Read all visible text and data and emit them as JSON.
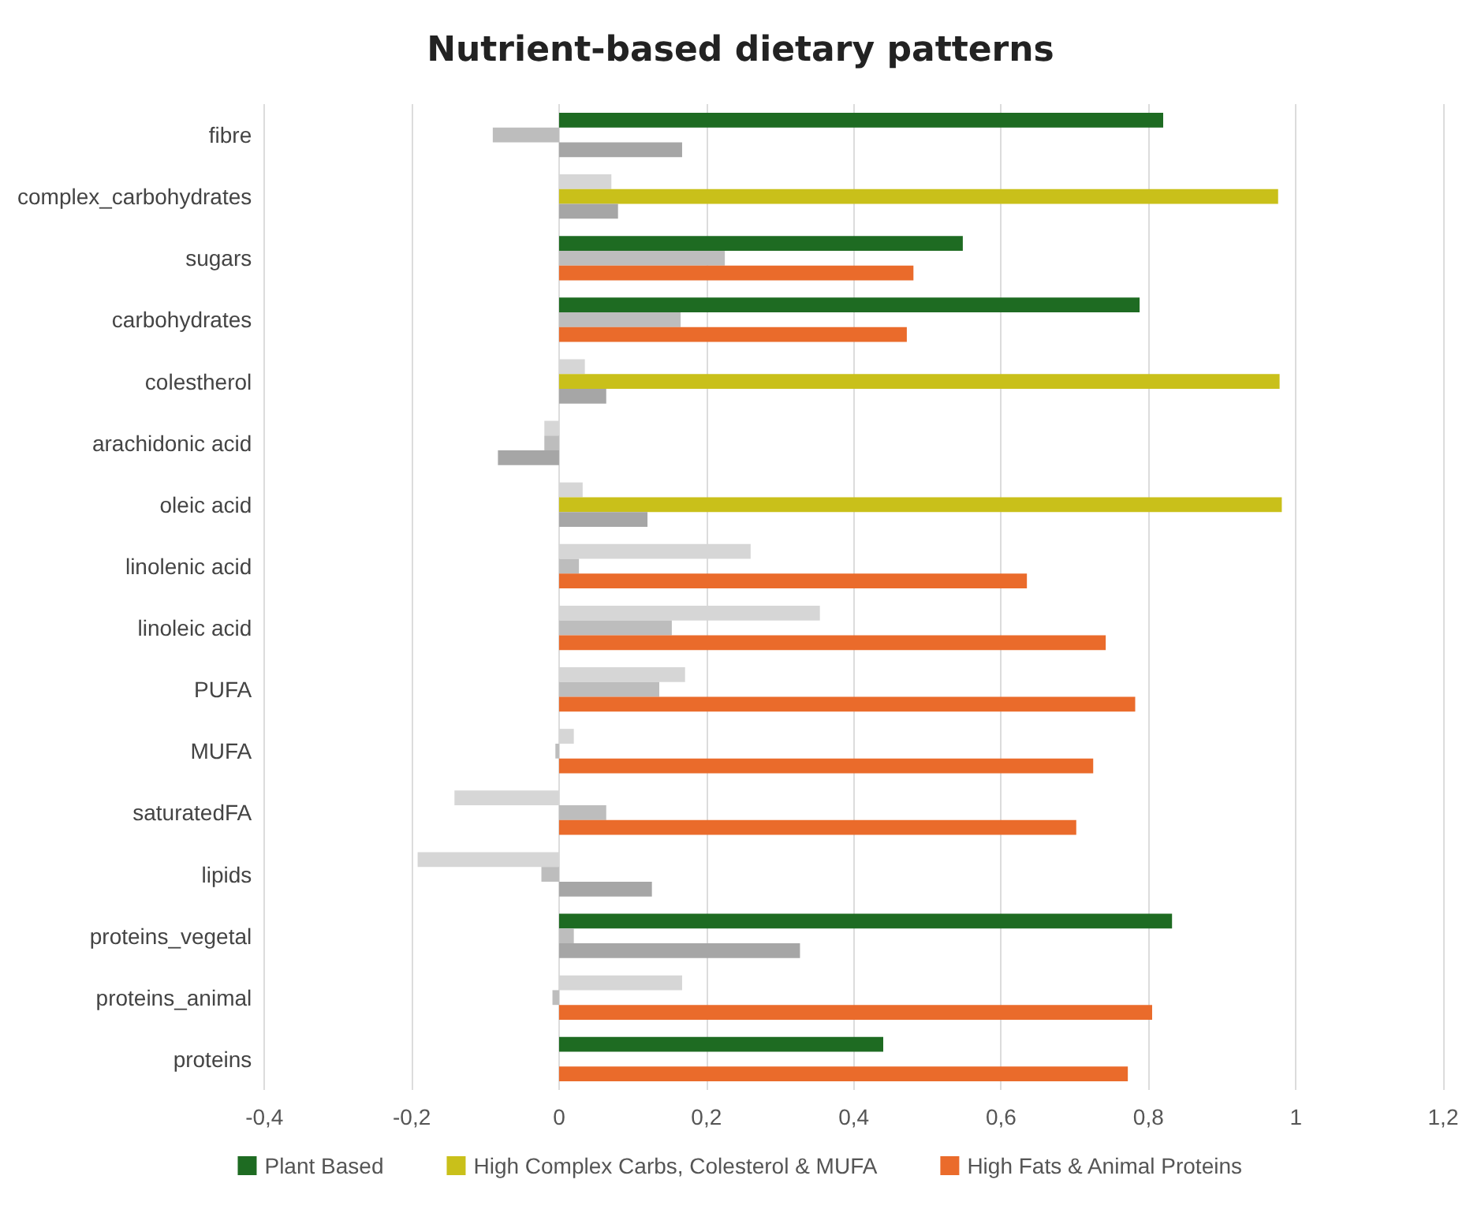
{
  "chart_data": {
    "type": "bar",
    "orientation": "horizontal",
    "title": "Nutrient-based dietary patterns",
    "categories": [
      "fibre",
      "complex_carbohydrates",
      "sugars",
      "carbohydrates",
      "colestherol",
      "arachidonic acid",
      "oleic acid",
      "linolenic acid",
      "linoleic acid",
      "PUFA",
      "MUFA",
      "saturatedFA",
      "lipids",
      "proteins_vegetal",
      "proteins_animal",
      "proteins"
    ],
    "series": [
      {
        "name": "Plant Based",
        "color": "#1e6b22",
        "values": [
          0.82,
          0.071,
          0.548,
          0.788,
          0.035,
          -0.02,
          0.032,
          0.26,
          0.354,
          0.171,
          0.02,
          -0.142,
          -0.192,
          0.832,
          0.167,
          0.44
        ],
        "colors": [
          "#1e6b22",
          "#d6d6d6",
          "#1e6b22",
          "#1e6b22",
          "#d6d6d6",
          "#d6d6d6",
          "#d6d6d6",
          "#d6d6d6",
          "#d6d6d6",
          "#d6d6d6",
          "#d6d6d6",
          "#d6d6d6",
          "#d6d6d6",
          "#1e6b22",
          "#d6d6d6",
          "#1e6b22"
        ]
      },
      {
        "name": "High Complex Carbs, Colesterol & MUFA",
        "color": "#c9c01a",
        "values": [
          -0.09,
          0.976,
          0.225,
          0.165,
          0.978,
          -0.02,
          0.981,
          0.027,
          0.153,
          0.136,
          -0.005,
          0.064,
          -0.024,
          0.02,
          -0.009,
          0
        ],
        "colors": [
          "#bdbdbd",
          "#c9c01a",
          "#bdbdbd",
          "#bdbdbd",
          "#c9c01a",
          "#bdbdbd",
          "#c9c01a",
          "#bdbdbd",
          "#bdbdbd",
          "#bdbdbd",
          "#bdbdbd",
          "#bdbdbd",
          "#bdbdbd",
          "#bdbdbd",
          "#bdbdbd",
          "#bdbdbd"
        ]
      },
      {
        "name": "High Fats & Animal Proteins",
        "color": "#ea6b2b",
        "values": [
          0.167,
          0.08,
          0.481,
          0.472,
          0.064,
          -0.083,
          0.12,
          0.635,
          0.742,
          0.782,
          0.725,
          0.702,
          0.126,
          0.327,
          0.805,
          0.772
        ],
        "colors": [
          "#a6a6a6",
          "#a6a6a6",
          "#ea6b2b",
          "#ea6b2b",
          "#a6a6a6",
          "#a6a6a6",
          "#a6a6a6",
          "#ea6b2b",
          "#ea6b2b",
          "#ea6b2b",
          "#ea6b2b",
          "#ea6b2b",
          "#a6a6a6",
          "#a6a6a6",
          "#ea6b2b",
          "#ea6b2b"
        ]
      }
    ],
    "xlim": [
      -0.4,
      1.2
    ],
    "xticks": [
      {
        "value": -0.4,
        "label": "-0,4"
      },
      {
        "value": -0.2,
        "label": "-0,2"
      },
      0,
      {
        "value": 0.2,
        "label": "0,2"
      },
      {
        "value": 0.4,
        "label": "0,4"
      },
      {
        "value": 0.6,
        "label": "0,6"
      },
      {
        "value": 0.8,
        "label": "0,8"
      },
      1,
      {
        "value": 1.2,
        "label": "1,2"
      }
    ],
    "grid": "x",
    "legend": "bottom"
  }
}
